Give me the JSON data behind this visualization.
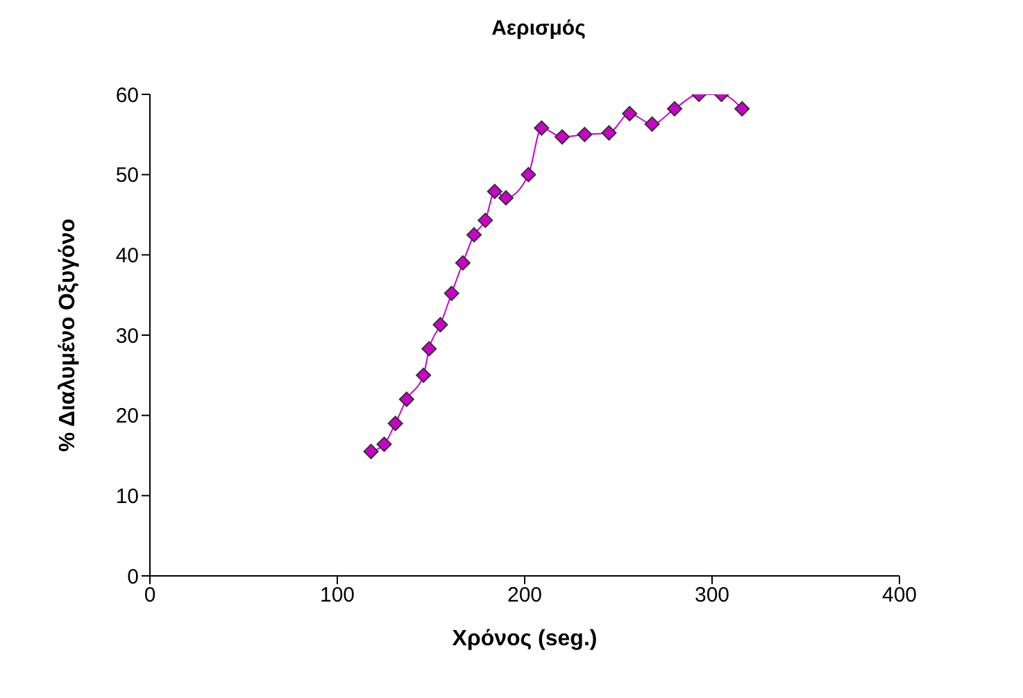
{
  "chart_data": {
    "type": "line",
    "title": "Αερισμός",
    "xlabel": "Χρόνος (seg.)",
    "ylabel": "% Διαλυμένο Οξυγόνο",
    "x": [
      118,
      125,
      131,
      137,
      146,
      149,
      155,
      161,
      167,
      173,
      179,
      184,
      190,
      202,
      209,
      220,
      232,
      245,
      256,
      268,
      280,
      293,
      305,
      316
    ],
    "series": [
      {
        "color": "#cc00cc",
        "values": [
          15.5,
          16.4,
          19,
          22,
          25,
          28.3,
          31.3,
          35.2,
          39,
          42.5,
          44.3,
          47.9,
          47.1,
          50,
          55.8,
          54.7,
          55,
          55.2,
          57.6,
          56.3,
          58.2,
          60,
          60,
          58.2
        ]
      }
    ],
    "xlim": [
      0,
      400
    ],
    "xticks": [
      0,
      100,
      200,
      300,
      400
    ],
    "ylim": [
      0,
      60
    ],
    "yticks": [
      0,
      10,
      20,
      30,
      40,
      50,
      60
    ],
    "grid": false,
    "legend": false,
    "marker": "diamond",
    "line_style": "solid"
  }
}
